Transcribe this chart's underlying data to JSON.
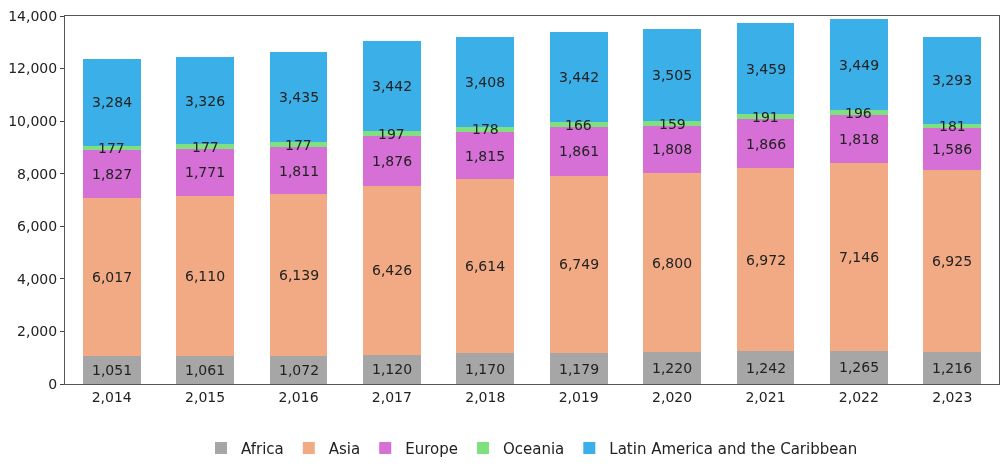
{
  "chart_data": {
    "type": "bar",
    "stacked": true,
    "legend": "bottom",
    "grid": false,
    "categories": [
      "2,014",
      "2,015",
      "2,016",
      "2,017",
      "2,018",
      "2,019",
      "2,020",
      "2,021",
      "2,022",
      "2,023"
    ],
    "ylim": [
      0,
      14000
    ],
    "yticks": [
      {
        "value": 0,
        "label": "0"
      },
      {
        "value": 2000,
        "label": "2,000"
      },
      {
        "value": 4000,
        "label": "4,000"
      },
      {
        "value": 6000,
        "label": "6,000"
      },
      {
        "value": 8000,
        "label": "8,000"
      },
      {
        "value": 10000,
        "label": "10,000"
      },
      {
        "value": 12000,
        "label": "12,000"
      },
      {
        "value": 14000,
        "label": "14,000"
      }
    ],
    "series": [
      {
        "name": "Africa",
        "color": "#a6a6a6",
        "values": [
          1051,
          1061,
          1072,
          1120,
          1170,
          1179,
          1220,
          1242,
          1265,
          1216
        ],
        "value_labels": [
          "1,051",
          "1,061",
          "1,072",
          "1,120",
          "1,170",
          "1,179",
          "1,220",
          "1,242",
          "1,265",
          "1,216"
        ]
      },
      {
        "name": "Asia",
        "color": "#f2aa84",
        "values": [
          6017,
          6110,
          6139,
          6426,
          6614,
          6749,
          6800,
          6972,
          7146,
          6925
        ],
        "value_labels": [
          "6,017",
          "6,110",
          "6,139",
          "6,426",
          "6,614",
          "6,749",
          "6,800",
          "6,972",
          "7,146",
          "6,925"
        ]
      },
      {
        "name": "Europe",
        "color": "#d66fd6",
        "values": [
          1827,
          1771,
          1811,
          1876,
          1815,
          1861,
          1808,
          1866,
          1818,
          1586
        ],
        "value_labels": [
          "1,827",
          "1,771",
          "1,811",
          "1,876",
          "1,815",
          "1,861",
          "1,808",
          "1,866",
          "1,818",
          "1,586"
        ]
      },
      {
        "name": "Oceania",
        "color": "#7fe07f",
        "values": [
          177,
          177,
          177,
          197,
          178,
          166,
          159,
          191,
          196,
          181
        ],
        "value_labels": [
          "177",
          "177",
          "177",
          "197",
          "178",
          "166",
          "159",
          "191",
          "196",
          "181"
        ]
      },
      {
        "name": "Latin America and the Caribbean",
        "color": "#3bb0e8",
        "values": [
          3284,
          3326,
          3435,
          3442,
          3408,
          3442,
          3505,
          3459,
          3449,
          3293
        ],
        "value_labels": [
          "3,284",
          "3,326",
          "3,435",
          "3,442",
          "3,408",
          "3,442",
          "3,505",
          "3,459",
          "3,449",
          "3,293"
        ]
      }
    ]
  }
}
